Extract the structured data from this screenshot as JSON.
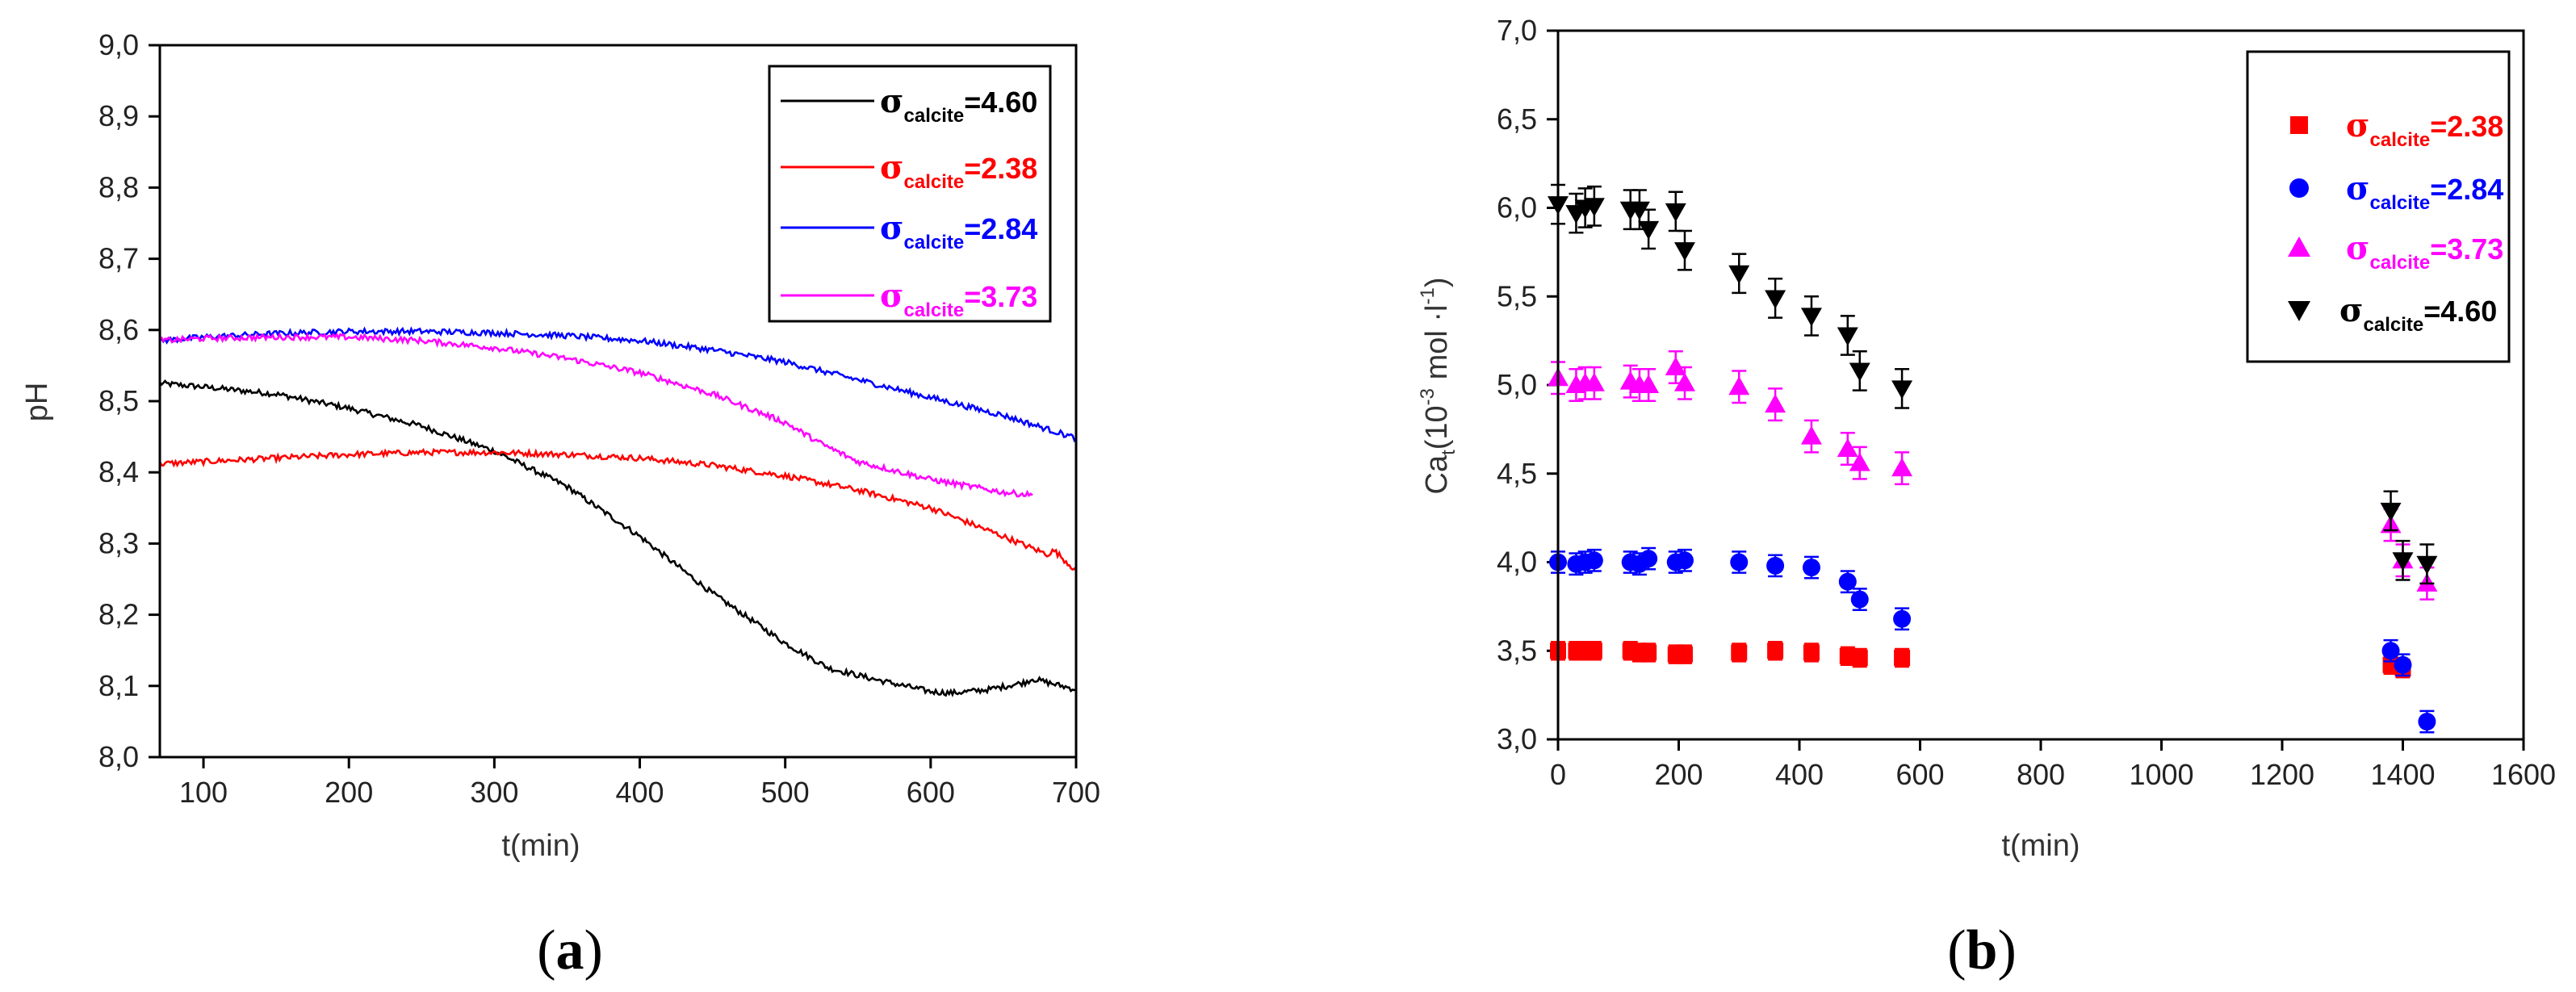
{
  "chart_data": [
    {
      "type": "line",
      "panel_label": "a",
      "xlabel": "t(min)",
      "ylabel": "pH",
      "xlim": [
        70,
        700
      ],
      "ylim": [
        8.0,
        9.0
      ],
      "xticks": [
        "100",
        "200",
        "300",
        "400",
        "500",
        "600",
        "700"
      ],
      "yticks": [
        "8,0",
        "8,1",
        "8,2",
        "8,3",
        "8,4",
        "8,5",
        "8,6",
        "8,7",
        "8,8",
        "8,9",
        "9,0"
      ],
      "legend_position": "top-right",
      "series": [
        {
          "name": "σcalcite=4.60",
          "symbol": "σ",
          "sub": "calcite",
          "value_label": "=4.60",
          "color": "#000000",
          "x": [
            70,
            100,
            150,
            200,
            250,
            300,
            350,
            400,
            450,
            500,
            530,
            560,
            600,
            615,
            640,
            665,
            670,
            700
          ],
          "y": [
            8.525,
            8.52,
            8.51,
            8.49,
            8.465,
            8.43,
            8.38,
            8.31,
            8.23,
            8.16,
            8.125,
            8.11,
            8.092,
            8.09,
            8.095,
            8.105,
            8.11,
            8.095
          ]
        },
        {
          "name": "σcalcite=2.38",
          "symbol": "σ",
          "sub": "calcite",
          "value_label": "=2.38",
          "color": "#ff0000",
          "x": [
            70,
            100,
            150,
            200,
            250,
            300,
            350,
            400,
            450,
            500,
            550,
            600,
            650,
            680,
            685,
            700
          ],
          "y": [
            8.412,
            8.415,
            8.42,
            8.425,
            8.428,
            8.428,
            8.425,
            8.42,
            8.41,
            8.395,
            8.375,
            8.35,
            8.31,
            8.285,
            8.29,
            8.262
          ]
        },
        {
          "name": "σcalcite=2.84",
          "symbol": "σ",
          "sub": "calcite",
          "value_label": "=2.84",
          "color": "#0000ff",
          "x": [
            70,
            100,
            150,
            200,
            250,
            300,
            350,
            400,
            450,
            500,
            550,
            600,
            650,
            700
          ],
          "y": [
            8.585,
            8.59,
            8.595,
            8.598,
            8.598,
            8.596,
            8.592,
            8.585,
            8.572,
            8.555,
            8.53,
            8.505,
            8.48,
            8.448
          ]
        },
        {
          "name": "σcalcite=3.73",
          "symbol": "σ",
          "sub": "calcite",
          "value_label": "=3.73",
          "color": "#ff00ff",
          "x": [
            70,
            100,
            150,
            200,
            250,
            300,
            350,
            400,
            450,
            500,
            525,
            550,
            600,
            650,
            670
          ],
          "y": [
            8.585,
            8.588,
            8.59,
            8.59,
            8.585,
            8.575,
            8.56,
            8.54,
            8.51,
            8.47,
            8.44,
            8.415,
            8.39,
            8.372,
            8.368
          ]
        }
      ]
    },
    {
      "type": "scatter",
      "panel_label": "b",
      "xlabel": "t(min)",
      "ylabel_main": "Ca",
      "ylabel_sub": "t",
      "ylabel_unit_a": "(10",
      "ylabel_exp_a": "-3",
      "ylabel_unit_b": " mol ·l",
      "ylabel_exp_b": "-1",
      "ylabel_unit_c": ")",
      "xlim": [
        0,
        1600
      ],
      "ylim": [
        3.0,
        7.0
      ],
      "xticks": [
        "0",
        "200",
        "400",
        "600",
        "800",
        "1000",
        "1200",
        "1400",
        "1600"
      ],
      "yticks": [
        "3,0",
        "3,5",
        "4,0",
        "4,5",
        "5,0",
        "5,5",
        "6,0",
        "6,5",
        "7,0"
      ],
      "legend_position": "top-right",
      "series": [
        {
          "name": "σcalcite=2.38",
          "symbol": "σ",
          "sub": "calcite",
          "value_label": "=2.38",
          "color": "#ff0000",
          "marker": "square",
          "err": 0.05,
          "x": [
            0,
            30,
            45,
            60,
            120,
            135,
            150,
            195,
            210,
            300,
            360,
            420,
            480,
            500,
            570,
            1380,
            1400
          ],
          "y": [
            3.5,
            3.5,
            3.5,
            3.5,
            3.5,
            3.49,
            3.49,
            3.48,
            3.48,
            3.49,
            3.5,
            3.49,
            3.47,
            3.46,
            3.46,
            3.42,
            3.4
          ]
        },
        {
          "name": "σcalcite=2.84",
          "symbol": "σ",
          "sub": "calcite",
          "value_label": "=2.84",
          "color": "#0000ff",
          "marker": "circle",
          "err": 0.06,
          "x": [
            0,
            30,
            45,
            60,
            120,
            135,
            150,
            195,
            210,
            300,
            360,
            420,
            480,
            500,
            570,
            1380,
            1400,
            1440
          ],
          "y": [
            4.0,
            3.99,
            4.0,
            4.01,
            4.0,
            3.99,
            4.02,
            4.0,
            4.01,
            4.0,
            3.98,
            3.97,
            3.89,
            3.79,
            3.68,
            3.5,
            3.42,
            3.1
          ]
        },
        {
          "name": "σcalcite=3.73",
          "symbol": "σ",
          "sub": "calcite",
          "value_label": "=3.73",
          "color": "#ff00ff",
          "marker": "triangle-up",
          "err": 0.09,
          "x": [
            0,
            30,
            45,
            60,
            120,
            135,
            150,
            195,
            210,
            300,
            360,
            420,
            480,
            500,
            570,
            1380,
            1400,
            1440
          ],
          "y": [
            5.04,
            5.0,
            5.01,
            5.01,
            5.02,
            5.0,
            5.0,
            5.1,
            5.01,
            4.99,
            4.89,
            4.71,
            4.64,
            4.56,
            4.53,
            4.21,
            4.01,
            3.88
          ]
        },
        {
          "name": "σcalcite=4.60",
          "symbol": "σ",
          "sub": "calcite",
          "value_label": "=4.60",
          "color": "#000000",
          "marker": "triangle-down",
          "err": 0.11,
          "x": [
            0,
            30,
            45,
            60,
            120,
            135,
            150,
            195,
            210,
            300,
            360,
            420,
            480,
            500,
            570,
            1380,
            1400,
            1440
          ],
          "y": [
            6.02,
            5.97,
            6.0,
            6.01,
            5.99,
            5.99,
            5.88,
            5.98,
            5.76,
            5.63,
            5.49,
            5.39,
            5.28,
            5.08,
            4.98,
            4.29,
            4.01,
            3.99
          ]
        }
      ]
    }
  ]
}
